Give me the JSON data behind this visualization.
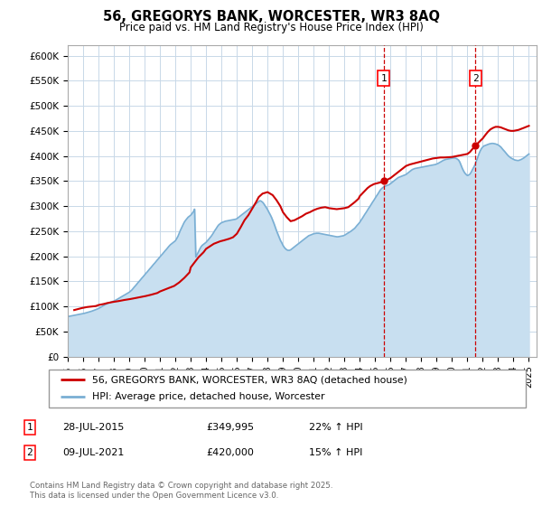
{
  "title": "56, GREGORYS BANK, WORCESTER, WR3 8AQ",
  "subtitle": "Price paid vs. HM Land Registry's House Price Index (HPI)",
  "ylim": [
    0,
    620000
  ],
  "yticks": [
    0,
    50000,
    100000,
    150000,
    200000,
    250000,
    300000,
    350000,
    400000,
    450000,
    500000,
    550000,
    600000
  ],
  "ytick_labels": [
    "£0",
    "£50K",
    "£100K",
    "£150K",
    "£200K",
    "£250K",
    "£300K",
    "£350K",
    "£400K",
    "£450K",
    "£500K",
    "£550K",
    "£600K"
  ],
  "xlim_start": 1995.0,
  "xlim_end": 2025.5,
  "grid_color": "#c8d8e8",
  "bg_color": "#ffffff",
  "fill_color": "#c8dff0",
  "red_line_color": "#cc0000",
  "blue_line_color": "#7aafd4",
  "marker1_x": 2015.55,
  "marker2_x": 2021.52,
  "marker1_y": 349995,
  "marker2_y": 420000,
  "legend_red_label": "56, GREGORYS BANK, WORCESTER, WR3 8AQ (detached house)",
  "legend_blue_label": "HPI: Average price, detached house, Worcester",
  "annotation1_date": "28-JUL-2015",
  "annotation1_price": "£349,995",
  "annotation1_hpi": "22% ↑ HPI",
  "annotation2_date": "09-JUL-2021",
  "annotation2_price": "£420,000",
  "annotation2_hpi": "15% ↑ HPI",
  "footnote": "Contains HM Land Registry data © Crown copyright and database right 2025.\nThis data is licensed under the Open Government Licence v3.0.",
  "hpi_years": [
    1995.0,
    1995.08,
    1995.17,
    1995.25,
    1995.33,
    1995.42,
    1995.5,
    1995.58,
    1995.67,
    1995.75,
    1995.83,
    1995.92,
    1996.0,
    1996.08,
    1996.17,
    1996.25,
    1996.33,
    1996.42,
    1996.5,
    1996.58,
    1996.67,
    1996.75,
    1996.83,
    1996.92,
    1997.0,
    1997.08,
    1997.17,
    1997.25,
    1997.33,
    1997.42,
    1997.5,
    1997.58,
    1997.67,
    1997.75,
    1997.83,
    1997.92,
    1998.0,
    1998.08,
    1998.17,
    1998.25,
    1998.33,
    1998.42,
    1998.5,
    1998.58,
    1998.67,
    1998.75,
    1998.83,
    1998.92,
    1999.0,
    1999.08,
    1999.17,
    1999.25,
    1999.33,
    1999.42,
    1999.5,
    1999.58,
    1999.67,
    1999.75,
    1999.83,
    1999.92,
    2000.0,
    2000.08,
    2000.17,
    2000.25,
    2000.33,
    2000.42,
    2000.5,
    2000.58,
    2000.67,
    2000.75,
    2000.83,
    2000.92,
    2001.0,
    2001.08,
    2001.17,
    2001.25,
    2001.33,
    2001.42,
    2001.5,
    2001.58,
    2001.67,
    2001.75,
    2001.83,
    2001.92,
    2002.0,
    2002.08,
    2002.17,
    2002.25,
    2002.33,
    2002.42,
    2002.5,
    2002.58,
    2002.67,
    2002.75,
    2002.83,
    2002.92,
    2003.0,
    2003.08,
    2003.17,
    2003.25,
    2003.33,
    2003.42,
    2003.5,
    2003.58,
    2003.67,
    2003.75,
    2003.83,
    2003.92,
    2004.0,
    2004.08,
    2004.17,
    2004.25,
    2004.33,
    2004.42,
    2004.5,
    2004.58,
    2004.67,
    2004.75,
    2004.83,
    2004.92,
    2005.0,
    2005.08,
    2005.17,
    2005.25,
    2005.33,
    2005.42,
    2005.5,
    2005.58,
    2005.67,
    2005.75,
    2005.83,
    2005.92,
    2006.0,
    2006.08,
    2006.17,
    2006.25,
    2006.33,
    2006.42,
    2006.5,
    2006.58,
    2006.67,
    2006.75,
    2006.83,
    2006.92,
    2007.0,
    2007.08,
    2007.17,
    2007.25,
    2007.33,
    2007.42,
    2007.5,
    2007.58,
    2007.67,
    2007.75,
    2007.83,
    2007.92,
    2008.0,
    2008.08,
    2008.17,
    2008.25,
    2008.33,
    2008.42,
    2008.5,
    2008.58,
    2008.67,
    2008.75,
    2008.83,
    2008.92,
    2009.0,
    2009.08,
    2009.17,
    2009.25,
    2009.33,
    2009.42,
    2009.5,
    2009.58,
    2009.67,
    2009.75,
    2009.83,
    2009.92,
    2010.0,
    2010.08,
    2010.17,
    2010.25,
    2010.33,
    2010.42,
    2010.5,
    2010.58,
    2010.67,
    2010.75,
    2010.83,
    2010.92,
    2011.0,
    2011.08,
    2011.17,
    2011.25,
    2011.33,
    2011.42,
    2011.5,
    2011.58,
    2011.67,
    2011.75,
    2011.83,
    2011.92,
    2012.0,
    2012.08,
    2012.17,
    2012.25,
    2012.33,
    2012.42,
    2012.5,
    2012.58,
    2012.67,
    2012.75,
    2012.83,
    2012.92,
    2013.0,
    2013.08,
    2013.17,
    2013.25,
    2013.33,
    2013.42,
    2013.5,
    2013.58,
    2013.67,
    2013.75,
    2013.83,
    2013.92,
    2014.0,
    2014.08,
    2014.17,
    2014.25,
    2014.33,
    2014.42,
    2014.5,
    2014.58,
    2014.67,
    2014.75,
    2014.83,
    2014.92,
    2015.0,
    2015.08,
    2015.17,
    2015.25,
    2015.33,
    2015.42,
    2015.5,
    2015.58,
    2015.67,
    2015.75,
    2015.83,
    2015.92,
    2016.0,
    2016.08,
    2016.17,
    2016.25,
    2016.33,
    2016.42,
    2016.5,
    2016.58,
    2016.67,
    2016.75,
    2016.83,
    2016.92,
    2017.0,
    2017.08,
    2017.17,
    2017.25,
    2017.33,
    2017.42,
    2017.5,
    2017.58,
    2017.67,
    2017.75,
    2017.83,
    2017.92,
    2018.0,
    2018.08,
    2018.17,
    2018.25,
    2018.33,
    2018.42,
    2018.5,
    2018.58,
    2018.67,
    2018.75,
    2018.83,
    2018.92,
    2019.0,
    2019.08,
    2019.17,
    2019.25,
    2019.33,
    2019.42,
    2019.5,
    2019.58,
    2019.67,
    2019.75,
    2019.83,
    2019.92,
    2020.0,
    2020.08,
    2020.17,
    2020.25,
    2020.33,
    2020.42,
    2020.5,
    2020.58,
    2020.67,
    2020.75,
    2020.83,
    2020.92,
    2021.0,
    2021.08,
    2021.17,
    2021.25,
    2021.33,
    2021.42,
    2021.5,
    2021.58,
    2021.67,
    2021.75,
    2021.83,
    2021.92,
    2022.0,
    2022.08,
    2022.17,
    2022.25,
    2022.33,
    2022.42,
    2022.5,
    2022.58,
    2022.67,
    2022.75,
    2022.83,
    2022.92,
    2023.0,
    2023.08,
    2023.17,
    2023.25,
    2023.33,
    2023.42,
    2023.5,
    2023.58,
    2023.67,
    2023.75,
    2023.83,
    2023.92,
    2024.0,
    2024.08,
    2024.17,
    2024.25,
    2024.33,
    2024.42,
    2024.5,
    2024.58,
    2024.67,
    2024.75,
    2024.83,
    2024.92,
    2025.0
  ],
  "hpi_values": [
    80000,
    80500,
    81000,
    81500,
    82000,
    82500,
    83000,
    83500,
    84000,
    84500,
    85000,
    85500,
    86000,
    86500,
    87200,
    88000,
    88800,
    89500,
    90200,
    91000,
    92000,
    93000,
    94000,
    95000,
    96000,
    97500,
    99000,
    100500,
    102000,
    103500,
    105000,
    106000,
    107000,
    108000,
    109000,
    110000,
    111000,
    112000,
    113500,
    115000,
    116500,
    118000,
    119500,
    121000,
    122500,
    124000,
    125500,
    127000,
    128500,
    130500,
    133000,
    136000,
    139000,
    142000,
    145000,
    148000,
    151000,
    154000,
    157000,
    160000,
    163000,
    166000,
    169000,
    172000,
    175000,
    178000,
    181000,
    184000,
    187000,
    190000,
    193000,
    196000,
    199000,
    202000,
    205000,
    208000,
    211000,
    214000,
    217000,
    220000,
    223000,
    225000,
    227000,
    229000,
    231000,
    235000,
    240000,
    246000,
    252000,
    258000,
    263000,
    268000,
    272000,
    275000,
    278000,
    280000,
    282000,
    285000,
    289000,
    294000,
    199000,
    204000,
    209000,
    214000,
    219000,
    222000,
    224000,
    226000,
    228000,
    231000,
    234000,
    237000,
    240000,
    244000,
    248000,
    252000,
    256000,
    260000,
    263000,
    265000,
    267000,
    268000,
    269000,
    270000,
    270500,
    271000,
    271500,
    272000,
    272500,
    273000,
    273500,
    274000,
    275000,
    277000,
    279000,
    281000,
    283000,
    285000,
    287000,
    289000,
    291000,
    293000,
    295000,
    297000,
    299000,
    301000,
    303000,
    305000,
    307000,
    309000,
    311000,
    310000,
    308000,
    305000,
    301000,
    297000,
    293000,
    288000,
    283000,
    278000,
    272000,
    265000,
    258000,
    251000,
    244000,
    238000,
    232000,
    227000,
    222000,
    218000,
    215000,
    213000,
    212000,
    212000,
    213000,
    215000,
    217000,
    219000,
    221000,
    223000,
    225000,
    227000,
    229000,
    231000,
    233000,
    235000,
    237000,
    239000,
    241000,
    242000,
    243000,
    244000,
    245000,
    245500,
    246000,
    246000,
    246000,
    245500,
    245000,
    244500,
    244000,
    243500,
    243000,
    242500,
    242000,
    241500,
    241000,
    240500,
    240000,
    239500,
    239000,
    239000,
    239500,
    240000,
    240500,
    241000,
    242000,
    243500,
    245000,
    246500,
    248000,
    250000,
    252000,
    254000,
    256000,
    259000,
    262000,
    265000,
    268000,
    272000,
    276000,
    280000,
    284000,
    288000,
    292000,
    296000,
    300000,
    304000,
    308000,
    312000,
    316000,
    320000,
    324000,
    328000,
    332000,
    335000,
    337000,
    339000,
    340000,
    341000,
    342000,
    343000,
    345000,
    347000,
    349000,
    351000,
    353000,
    355000,
    357000,
    358000,
    359000,
    360000,
    361000,
    362000,
    363000,
    365000,
    367000,
    369000,
    371000,
    373000,
    374000,
    375000,
    375500,
    376000,
    376500,
    377000,
    377500,
    378000,
    378500,
    379000,
    379500,
    380000,
    380500,
    381000,
    381500,
    382000,
    382500,
    383000,
    384000,
    385000,
    386500,
    388000,
    389500,
    391000,
    392000,
    393000,
    393500,
    394000,
    394500,
    395000,
    395500,
    396000,
    396000,
    395500,
    394000,
    392000,
    388000,
    382000,
    375000,
    370000,
    366000,
    363000,
    361000,
    362000,
    364000,
    368000,
    373000,
    378000,
    383000,
    390000,
    397000,
    404000,
    410000,
    415000,
    418000,
    420000,
    421000,
    422000,
    423000,
    424000,
    424500,
    425000,
    425000,
    424500,
    424000,
    423000,
    422000,
    420000,
    418000,
    415000,
    412000,
    409000,
    406000,
    403000,
    400000,
    398000,
    396000,
    394500,
    393000,
    392000,
    391500,
    391000,
    391000,
    392000,
    393000,
    394500,
    396000,
    398000,
    400000,
    402000,
    404000
  ],
  "price_years": [
    1995.42,
    1995.67,
    1995.92,
    1996.25,
    1996.83,
    1997.0,
    1997.33,
    1997.58,
    1997.92,
    1998.33,
    1998.67,
    1999.08,
    1999.42,
    1999.75,
    2000.08,
    2000.42,
    2000.83,
    2001.0,
    2001.25,
    2001.58,
    2001.92,
    2002.25,
    2002.58,
    2002.92,
    2003.0,
    2003.25,
    2003.5,
    2003.83,
    2004.0,
    2004.25,
    2004.5,
    2004.75,
    2004.92,
    2005.17,
    2005.5,
    2005.75,
    2006.0,
    2006.25,
    2006.5,
    2006.75,
    2007.0,
    2007.25,
    2007.42,
    2007.67,
    2008.0,
    2008.33,
    2008.58,
    2008.83,
    2009.0,
    2009.25,
    2009.5,
    2009.75,
    2010.0,
    2010.25,
    2010.5,
    2010.75,
    2011.0,
    2011.25,
    2011.5,
    2011.75,
    2012.0,
    2012.25,
    2012.5,
    2012.75,
    2013.0,
    2013.25,
    2013.42,
    2013.67,
    2013.92,
    2014.0,
    2014.25,
    2014.5,
    2014.67,
    2014.92,
    2015.17,
    2015.42,
    2015.55,
    2015.75,
    2016.0,
    2016.25,
    2016.5,
    2016.75,
    2017.0,
    2017.25,
    2017.5,
    2017.75,
    2018.0,
    2018.25,
    2018.5,
    2018.75,
    2019.0,
    2019.25,
    2019.5,
    2019.75,
    2020.0,
    2020.17,
    2020.33,
    2020.5,
    2020.67,
    2020.83,
    2021.0,
    2021.17,
    2021.33,
    2021.52,
    2021.67,
    2021.83,
    2022.0,
    2022.17,
    2022.33,
    2022.5,
    2022.67,
    2022.83,
    2023.0,
    2023.17,
    2023.33,
    2023.5,
    2023.67,
    2023.83,
    2024.0,
    2024.17,
    2024.33,
    2024.5,
    2024.67,
    2024.83,
    2025.0
  ],
  "price_values": [
    93000,
    95000,
    97000,
    99000,
    101000,
    103000,
    105000,
    107000,
    109000,
    111000,
    113000,
    115000,
    117000,
    119000,
    121000,
    123500,
    127000,
    130000,
    133000,
    137000,
    141000,
    148000,
    157000,
    168000,
    178000,
    188000,
    198000,
    208000,
    215000,
    220000,
    225000,
    228000,
    230000,
    232000,
    235000,
    238000,
    245000,
    258000,
    272000,
    282000,
    295000,
    308000,
    318000,
    325000,
    328000,
    322000,
    312000,
    300000,
    288000,
    278000,
    270000,
    272000,
    276000,
    280000,
    285000,
    288000,
    292000,
    295000,
    297000,
    298000,
    296000,
    295000,
    294000,
    295000,
    296000,
    298000,
    302000,
    308000,
    315000,
    320000,
    328000,
    336000,
    340000,
    344000,
    346000,
    348000,
    349995,
    352000,
    356000,
    362000,
    368000,
    374000,
    380000,
    383000,
    385000,
    387000,
    389000,
    391000,
    393000,
    395000,
    396000,
    397000,
    397000,
    397500,
    398000,
    399000,
    400000,
    401000,
    402000,
    403000,
    404000,
    408000,
    414000,
    420000,
    425000,
    430000,
    435000,
    442000,
    448000,
    453000,
    456000,
    458000,
    458000,
    457000,
    455000,
    453000,
    451000,
    450000,
    450000,
    451000,
    452000,
    454000,
    456000,
    458000,
    460000
  ]
}
